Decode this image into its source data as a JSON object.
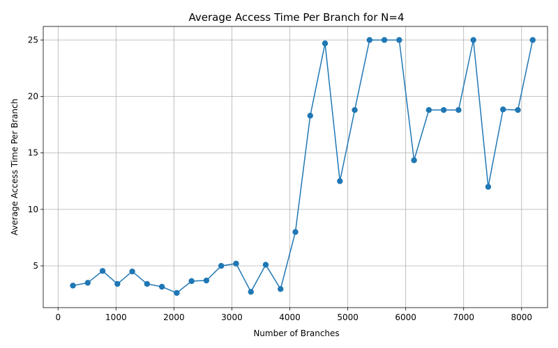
{
  "chart_data": {
    "type": "line",
    "title": "Average Access Time Per Branch for N=4",
    "xlabel": "Number of Branches",
    "ylabel": "Average Access Time Per Branch",
    "xlim": [
      -256,
      8448
    ],
    "ylim": [
      1.3,
      26.2
    ],
    "xticks": [
      0,
      1000,
      2000,
      3000,
      4000,
      5000,
      6000,
      7000,
      8000
    ],
    "yticks": [
      5,
      10,
      15,
      20,
      25
    ],
    "grid": true,
    "marker": "circle",
    "color": "#1f77b4",
    "series": [
      {
        "x": [
          256,
          512,
          768,
          1024,
          1280,
          1536,
          1792,
          2048,
          2304,
          2560,
          2816,
          3072,
          3328,
          3584,
          3840,
          4096,
          4352,
          4608,
          4864,
          5120,
          5376,
          5632,
          5888,
          6144,
          6400,
          6656,
          6912,
          7168,
          7424,
          7680,
          7936,
          8192
        ],
        "y": [
          3.25,
          3.5,
          4.55,
          3.4,
          4.5,
          3.4,
          3.15,
          2.6,
          3.65,
          3.7,
          5.0,
          5.2,
          2.7,
          5.1,
          2.95,
          8.0,
          18.3,
          24.7,
          12.5,
          18.8,
          25.0,
          25.0,
          25.0,
          14.35,
          18.8,
          18.8,
          18.8,
          25.0,
          12.0,
          18.85,
          18.8,
          25.0
        ]
      }
    ]
  }
}
